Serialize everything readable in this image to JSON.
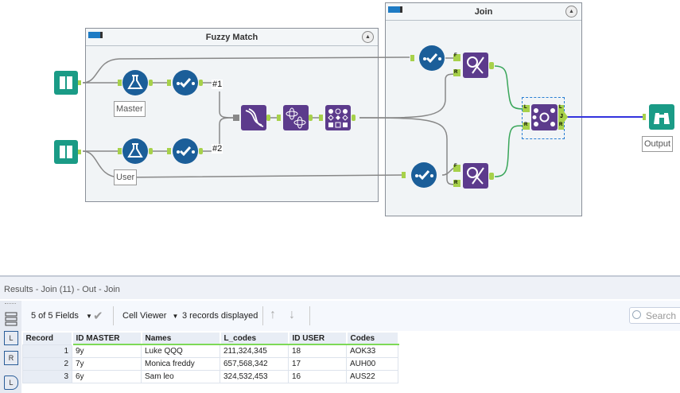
{
  "canvas": {
    "containers": [
      {
        "title": "Fuzzy Match"
      },
      {
        "title": "Join"
      }
    ],
    "labels": {
      "master": "Master",
      "user": "User",
      "output": "Output",
      "tag1": "#1",
      "tag2": "#2"
    },
    "anchors": {
      "f": "F",
      "r": "R",
      "l": "L",
      "j": "J"
    },
    "colors": {
      "blue_tool": "#1b5e99",
      "purple_tool": "#5c3b8c",
      "input_teal": "#1a9b86",
      "anchor_green": "#a7d14a",
      "connection_gray": "#888888",
      "connection_green": "#3aa65a",
      "connection_blue": "#3333dd"
    }
  },
  "results": {
    "title": "Results - Join (11) - Out - Join",
    "fields_selector": "5 of 5 Fields",
    "viewer_selector": "Cell Viewer",
    "records_displayed": "3 records displayed",
    "search_placeholder": "Search",
    "strip_icons": [
      "rows-icon",
      "left-anchor-icon",
      "right-anchor-icon",
      "output-anchor-icon"
    ],
    "strip_labels": {
      "l": "L",
      "r": "R",
      "o": "L"
    },
    "columns": [
      "Record",
      "ID MASTER",
      "Names",
      "L_codes",
      "ID USER",
      "Codes"
    ],
    "rows": [
      [
        "1",
        "9y",
        "Luke QQQ",
        "211,324,345",
        "18",
        "AOK33"
      ],
      [
        "2",
        "7y",
        "Monica freddy",
        "657,568,342",
        "17",
        "AUH00"
      ],
      [
        "3",
        "6y",
        "Sam leo",
        "324,532,453",
        "16",
        "AUS22"
      ]
    ]
  }
}
